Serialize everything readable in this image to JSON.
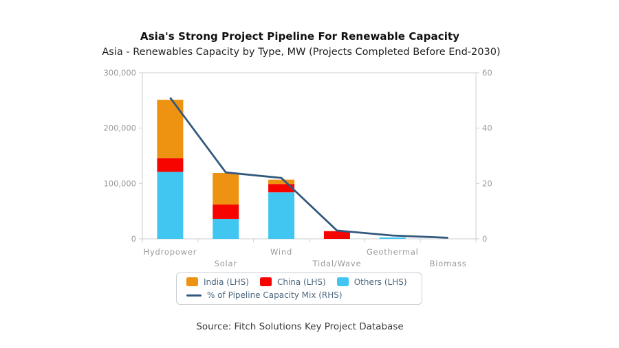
{
  "header": {
    "title": "Asia's Strong Project Pipeline For Renewable Capacity",
    "subtitle": "Asia - Renewables Capacity by Type, MW (Projects Completed Before End-2030)"
  },
  "footer": {
    "source": "Source: Fitch Solutions Key Project Database"
  },
  "legend": {
    "items": [
      {
        "label": "India (LHS)",
        "swatch": "box",
        "color": "#ee9211"
      },
      {
        "label": "China (LHS)",
        "swatch": "box",
        "color": "#f60400"
      },
      {
        "label": "Others (LHS)",
        "swatch": "box",
        "color": "#41c6f2"
      },
      {
        "label": "% of Pipeline Capacity Mix (RHS)",
        "swatch": "line",
        "color": "#33587d"
      }
    ]
  },
  "chart_data": {
    "type": "bar",
    "subtype": "stacked-bars-with-line-overlay",
    "title": "Asia's Strong Project Pipeline For Renewable Capacity",
    "subtitle": "Asia - Renewables Capacity by Type, MW (Projects Completed Before End-2030)",
    "categories": [
      "Hydropower",
      "Solar",
      "Wind",
      "Tidal/Wave",
      "Geothermal",
      "Biomass"
    ],
    "series": [
      {
        "name": "India (LHS)",
        "color": "#ee9211",
        "axis": "left",
        "values": [
          105000,
          57000,
          8000,
          0,
          0,
          0
        ]
      },
      {
        "name": "China (LHS)",
        "color": "#f60400",
        "axis": "left",
        "values": [
          25000,
          26000,
          15000,
          14000,
          0,
          0
        ]
      },
      {
        "name": "Others (LHS)",
        "color": "#41c6f2",
        "axis": "left",
        "values": [
          121000,
          36000,
          84000,
          0,
          2500,
          0
        ]
      }
    ],
    "stack_order_bottom_to_top": [
      "Others (LHS)",
      "China (LHS)",
      "India (LHS)"
    ],
    "line": {
      "name": "% of Pipeline Capacity Mix (RHS)",
      "color": "#33587d",
      "axis": "right",
      "values": [
        51,
        24,
        22,
        3,
        1.2,
        0.4
      ]
    },
    "left_axis": {
      "min": 0,
      "max": 300000,
      "labels": [
        "300,000",
        "200,000",
        "100,000",
        "0"
      ],
      "label_values": [
        300000,
        200000,
        100000,
        0
      ]
    },
    "right_axis": {
      "min": 0,
      "max": 60,
      "labels": [
        "60",
        "40",
        "20",
        "0"
      ],
      "label_values": [
        60,
        40,
        20,
        0
      ]
    },
    "grid": "none",
    "legend_position": "bottom",
    "axis_color": "#c9cdd2",
    "tick_label_color": "#97999c"
  }
}
